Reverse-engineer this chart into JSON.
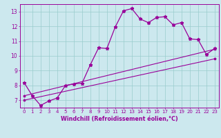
{
  "xlabel": "Windchill (Refroidissement éolien,°C)",
  "bg_color": "#cce8ee",
  "line_color": "#990099",
  "xlim": [
    -0.5,
    23.5
  ],
  "ylim": [
    6.5,
    13.5
  ],
  "yticks": [
    7,
    8,
    9,
    10,
    11,
    12,
    13
  ],
  "xticks": [
    0,
    1,
    2,
    3,
    4,
    5,
    6,
    7,
    8,
    9,
    10,
    11,
    12,
    13,
    14,
    15,
    16,
    17,
    18,
    19,
    20,
    21,
    22,
    23
  ],
  "series1_x": [
    0,
    1,
    2,
    3,
    4,
    5,
    6,
    7,
    8,
    9,
    10,
    11,
    12,
    13,
    14,
    15,
    16,
    17,
    18,
    19,
    20,
    21,
    22,
    23
  ],
  "series1_y": [
    8.2,
    7.3,
    6.65,
    6.95,
    7.15,
    8.0,
    8.1,
    8.15,
    9.4,
    10.55,
    10.5,
    11.95,
    13.05,
    13.2,
    12.5,
    12.25,
    12.6,
    12.65,
    12.1,
    12.25,
    11.15,
    11.1,
    10.1,
    10.5
  ],
  "series2_x": [
    0,
    23
  ],
  "series2_y": [
    7.0,
    9.8
  ],
  "series3_x": [
    0,
    23
  ],
  "series3_y": [
    7.3,
    10.45
  ],
  "grid_color": "#99cccc",
  "tick_fontsize": 5.0,
  "xlabel_fontsize": 5.8
}
